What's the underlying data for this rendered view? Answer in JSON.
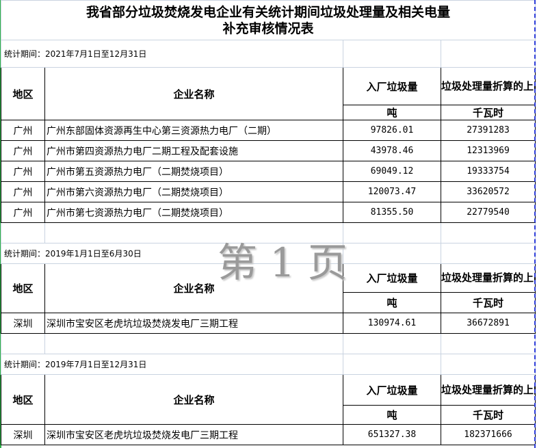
{
  "title": {
    "line1": "我省部分垃圾焚烧发电企业有关统计期间垃圾处理量及相关电量",
    "line2": "补充审核情况表"
  },
  "headers": {
    "region": "地区",
    "company": "企业名称",
    "intake": "入厂垃圾量",
    "power": "垃圾处理量折算的上网电量",
    "intake_unit": "吨",
    "power_unit": "千瓦时"
  },
  "sections": [
    {
      "period": "统计期间：2021年7月1日至12月31日",
      "rows": [
        {
          "region": "广州",
          "company": "广州东部固体资源再生中心第三资源热力电厂（二期）",
          "intake": "97826.01",
          "power": "27391283"
        },
        {
          "region": "广州",
          "company": "广州市第四资源热力电厂二期工程及配套设施",
          "intake": "43978.46",
          "power": "12313969"
        },
        {
          "region": "广州",
          "company": "广州市第五资源热力电厂（二期焚烧项目）",
          "intake": "69049.12",
          "power": "19333754"
        },
        {
          "region": "广州",
          "company": "广州市第六资源热力电厂（二期焚烧项目）",
          "intake": "120073.47",
          "power": "33620572"
        },
        {
          "region": "广州",
          "company": "广州市第七资源热力电厂（二期焚烧项目）",
          "intake": "81355.50",
          "power": "22779540"
        }
      ]
    },
    {
      "period": "统计期间：2019年1月1日至6月30日",
      "rows": [
        {
          "region": "深圳",
          "company": "深圳市宝安区老虎坑垃圾焚烧发电厂三期工程",
          "intake": "130974.61",
          "power": "36672891"
        }
      ]
    },
    {
      "period": "统计期间：2019年7月1日至12月31日",
      "rows": [
        {
          "region": "深圳",
          "company": "深圳市宝安区老虎坑垃圾焚烧发电厂三期工程",
          "intake": "651327.38",
          "power": "182371666"
        }
      ]
    }
  ],
  "watermark": "第 1 页"
}
